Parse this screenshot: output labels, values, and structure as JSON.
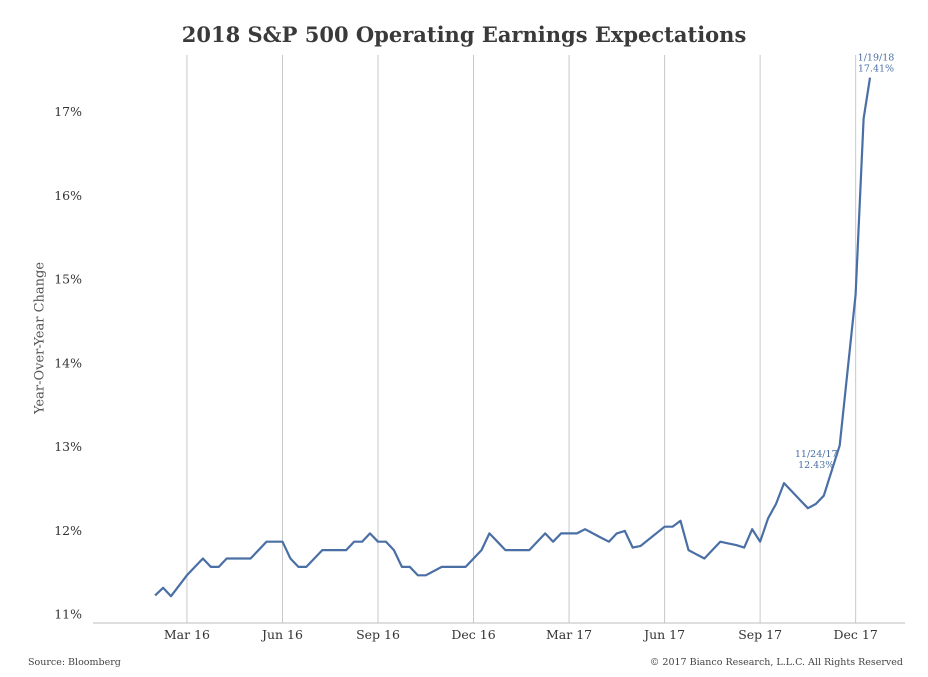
{
  "chart_data": {
    "type": "line",
    "title": "2018 S&P 500 Operating Earnings Expectations",
    "ylabel": "Year-Over-Year Change",
    "xlabel": "",
    "y_ticks": [
      "17%",
      "16%",
      "15%",
      "14%",
      "13%",
      "12%",
      "11%"
    ],
    "y_tick_values": [
      17,
      16,
      15,
      14,
      13,
      12,
      11
    ],
    "x_ticks": [
      "Mar 16",
      "Jun 16",
      "Sep 16",
      "Dec 16",
      "Mar 17",
      "Jun 17",
      "Sep 17",
      "Dec 17"
    ],
    "x_tick_values": [
      2,
      5,
      8,
      11,
      14,
      17,
      20,
      23
    ],
    "xlim": [
      -0.95,
      24.55
    ],
    "ylim": [
      10.9,
      17.8
    ],
    "grid": "vertical",
    "series": [
      {
        "color": "#4a6fa5",
        "x": [
          1.0,
          1.25,
          1.5,
          2.0,
          2.5,
          2.75,
          3.0,
          3.25,
          4.0,
          4.5,
          5.0,
          5.25,
          5.5,
          5.75,
          6.25,
          7.0,
          7.25,
          7.5,
          7.75,
          8.0,
          8.25,
          8.5,
          8.75,
          9.0,
          9.25,
          9.5,
          10.0,
          10.75,
          11.25,
          11.5,
          11.75,
          12.0,
          12.75,
          13.25,
          13.5,
          13.75,
          14.0,
          14.25,
          14.5,
          14.75,
          15.0,
          15.25,
          15.5,
          15.75,
          16.0,
          16.25,
          17.0,
          17.25,
          17.5,
          17.75,
          18.0,
          18.25,
          18.5,
          18.75,
          19.0,
          19.25,
          19.5,
          19.75,
          20.0,
          20.25,
          20.5,
          20.75,
          21.0,
          21.25,
          21.5,
          21.75,
          22.0,
          22.5,
          23.0,
          23.25,
          23.45
        ],
        "y": [
          11.23,
          11.32,
          11.22,
          11.47,
          11.67,
          11.57,
          11.57,
          11.67,
          11.67,
          11.87,
          11.87,
          11.67,
          11.57,
          11.57,
          11.77,
          11.77,
          11.87,
          11.87,
          11.97,
          11.87,
          11.87,
          11.77,
          11.57,
          11.57,
          11.47,
          11.47,
          11.57,
          11.57,
          11.77,
          11.97,
          11.87,
          11.77,
          11.77,
          11.97,
          11.87,
          11.97,
          11.97,
          11.97,
          12.02,
          11.97,
          11.92,
          11.87,
          11.97,
          12.0,
          11.8,
          11.82,
          12.05,
          12.05,
          12.12,
          11.77,
          11.72,
          11.67,
          11.77,
          11.87,
          11.85,
          11.83,
          11.8,
          12.02,
          11.87,
          12.15,
          12.32,
          12.57,
          12.47,
          12.37,
          12.27,
          12.32,
          12.42,
          13.02,
          14.82,
          16.92,
          17.41
        ]
      }
    ],
    "annotations": [
      {
        "date": "11/24/17",
        "value_label": "12.43%",
        "x": 21.95,
        "y": 12.43
      },
      {
        "date": "1/19/18",
        "value_label": "17.41%",
        "x": 23.45,
        "y": 17.41
      }
    ]
  },
  "footer": {
    "source": "Source: Bloomberg",
    "copyright": "© 2017 Bianco Research, L.L.C. All Rights Reserved"
  },
  "colors": {
    "line": "#4a6fa5",
    "grid": "#c8c8c8",
    "axis": "#bdbdbd",
    "text": "#333333"
  }
}
